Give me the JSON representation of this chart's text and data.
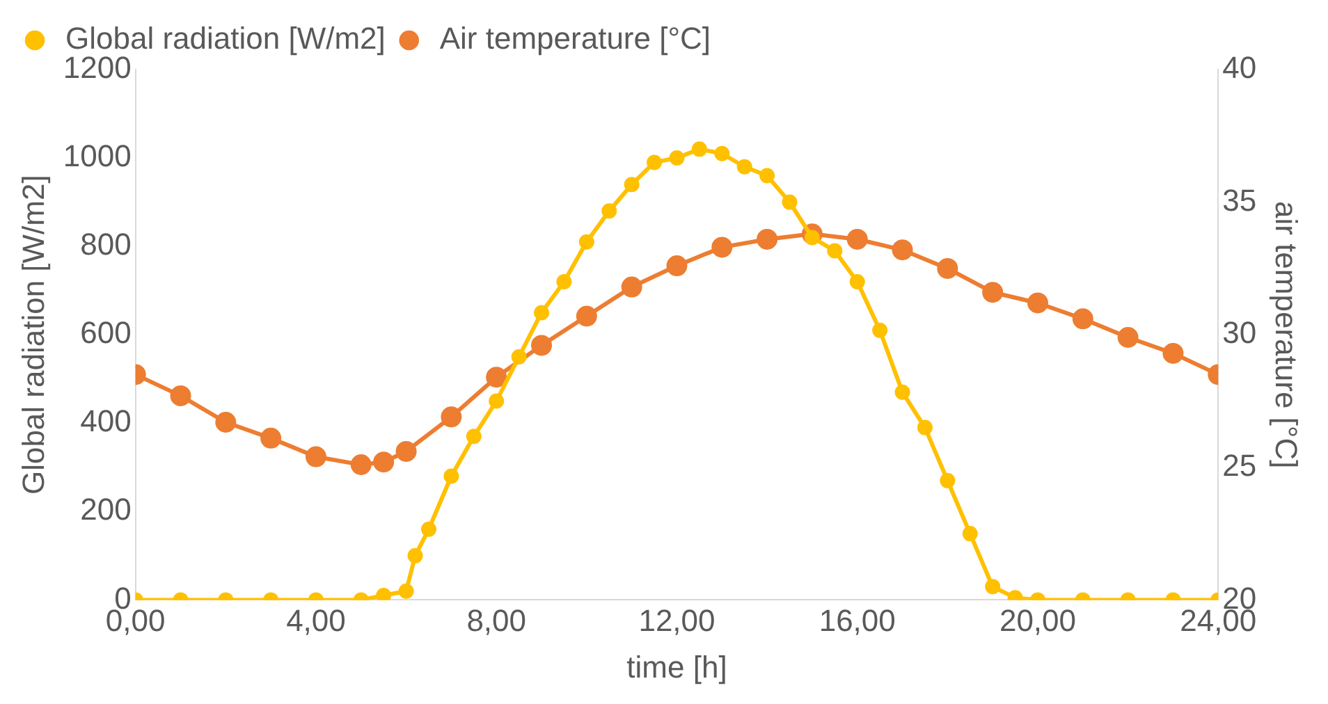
{
  "chart_data": {
    "type": "line",
    "xlabel": "time [h]",
    "ylabel": "Global radiation [W/m2]",
    "y2label": "air temperature [°C]",
    "xlim": [
      0,
      24
    ],
    "xticks": [
      {
        "value": 0,
        "label": "0,00"
      },
      {
        "value": 4,
        "label": "4,00"
      },
      {
        "value": 8,
        "label": "8,00"
      },
      {
        "value": 12,
        "label": "12,00"
      },
      {
        "value": 16,
        "label": "16,00"
      },
      {
        "value": 20,
        "label": "20,00"
      },
      {
        "value": 24,
        "label": "24,00"
      }
    ],
    "ylim": [
      0,
      1200
    ],
    "yticks": [
      0,
      200,
      400,
      600,
      800,
      1000,
      1200
    ],
    "y2lim": [
      20,
      40
    ],
    "y2ticks": [
      20,
      25,
      30,
      35,
      40
    ],
    "grid": false,
    "legend": "top left",
    "marker": "circle",
    "line_style": "solid",
    "series": [
      {
        "name": "Global radiation [W/m2]",
        "color": "#ffc000",
        "x": [
          0,
          1,
          2,
          3,
          4,
          5,
          5.5,
          6,
          6.2,
          6.5,
          7,
          7.5,
          8,
          8.5,
          9,
          9.5,
          10,
          10.5,
          11,
          11.5,
          12,
          12.5,
          13,
          13.5,
          14,
          14.5,
          15,
          15.5,
          16,
          16.5,
          17,
          17.5,
          18,
          18.5,
          19,
          19.5,
          20,
          21,
          22,
          23,
          24
        ],
        "values": [
          0,
          0,
          0,
          0,
          0,
          0,
          10,
          20,
          100,
          160,
          280,
          370,
          450,
          550,
          650,
          720,
          810,
          880,
          940,
          990,
          1000,
          1020,
          1010,
          980,
          960,
          900,
          820,
          790,
          720,
          610,
          470,
          390,
          270,
          150,
          30,
          5,
          0,
          0,
          0,
          0,
          0
        ]
      },
      {
        "name": "Air temperature [°C]",
        "color": "#ed7d31",
        "axis": "y2",
        "x": [
          0,
          1,
          2,
          3,
          4,
          5,
          5.5,
          6,
          7,
          8,
          9,
          10,
          11,
          12,
          13,
          14,
          15,
          16,
          17,
          18,
          19,
          20,
          21,
          22,
          23,
          24
        ],
        "values": [
          28.5,
          27.7,
          26.7,
          26.1,
          25.4,
          25.1,
          25.2,
          25.6,
          26.9,
          28.4,
          29.6,
          30.7,
          31.8,
          32.6,
          33.3,
          33.6,
          33.8,
          33.6,
          33.2,
          32.5,
          31.6,
          31.2,
          30.6,
          29.9,
          29.3,
          28.5
        ]
      }
    ]
  }
}
